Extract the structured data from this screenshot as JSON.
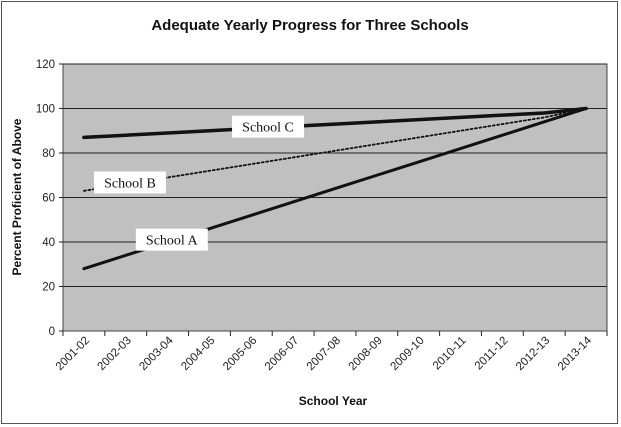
{
  "chart_data": {
    "type": "line",
    "title": "Adequate Yearly Progress for Three Schools",
    "xlabel": "School Year",
    "ylabel": "Percent Proficient of Above",
    "categories": [
      "2001-02",
      "2002-03",
      "2003-04",
      "2004-05",
      "2005-06",
      "2006-07",
      "2007-08",
      "2008-09",
      "2009-10",
      "2010-11",
      "2011-12",
      "2012-13",
      "2013-14"
    ],
    "ylim": [
      0,
      120
    ],
    "yticks": [
      0,
      20,
      40,
      60,
      80,
      100,
      120
    ],
    "grid": true,
    "series": [
      {
        "name": "School A",
        "values": [
          28,
          34,
          40,
          46,
          52,
          58,
          64,
          70,
          76,
          82,
          88,
          94,
          100
        ],
        "style": "solid-thick"
      },
      {
        "name": "School B",
        "values": [
          63,
          66,
          69,
          72,
          75,
          78,
          81,
          84,
          87,
          90,
          93,
          96,
          100
        ],
        "style": "dotted"
      },
      {
        "name": "School C",
        "values": [
          87,
          88,
          89,
          90,
          91,
          92,
          93,
          94,
          95,
          96,
          97,
          98,
          100
        ],
        "style": "solid-thicker"
      }
    ],
    "colors": {
      "plot_bg": "#c0c0c0",
      "line": "#111111",
      "grid": "#222222"
    }
  }
}
